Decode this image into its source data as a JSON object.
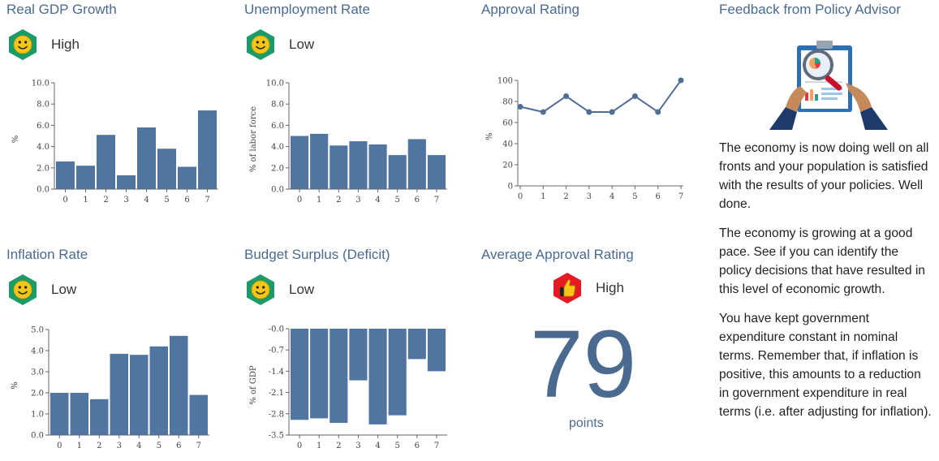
{
  "colors": {
    "bar": "#4f75a0",
    "line": "#4f6f94",
    "title": "#4a6a90",
    "hex_green": "#1a9b67",
    "hex_red": "#e31b23",
    "smiley": "#f5c518"
  },
  "panels": {
    "gdp": {
      "title": "Real GDP Growth",
      "status": "High",
      "icon": "smiley-icon"
    },
    "unemployment": {
      "title": "Unemployment Rate",
      "status": "Low",
      "icon": "smiley-icon"
    },
    "approval": {
      "title": "Approval Rating"
    },
    "inflation": {
      "title": "Inflation Rate",
      "status": "Low",
      "icon": "smiley-icon"
    },
    "budget": {
      "title": "Budget Surplus (Deficit)",
      "status": "Low",
      "icon": "smiley-icon"
    },
    "avg_approval": {
      "title": "Average Approval Rating",
      "status": "High",
      "icon": "thumbs-up-icon",
      "value": "79",
      "unit": "points"
    }
  },
  "advisor": {
    "title": "Feedback from Policy Advisor",
    "image_icon": "clipboard-magnifier-icon",
    "paragraphs": [
      "The economy is now doing well on all fronts and your population is satisfied with the results of your policies. Well done.",
      "The economy is growing at a good pace. See if you can identify the policy decisions that have resulted in this level of economic growth.",
      "You have kept government expenditure constant in nominal terms. Remember that, if inflation is positive, this amounts to a reduction in government expenditure in real terms (i.e. after adjusting for inflation)."
    ]
  },
  "chart_data": [
    {
      "id": "gdp",
      "type": "bar",
      "categories": [
        "0",
        "1",
        "2",
        "3",
        "4",
        "5",
        "6",
        "7"
      ],
      "values": [
        2.6,
        2.2,
        5.1,
        1.3,
        5.8,
        3.8,
        2.1,
        7.4
      ],
      "ylabel": "%",
      "ylim": [
        0,
        10
      ],
      "yticks": [
        "0.0",
        "2.0",
        "4.0",
        "6.0",
        "8.0",
        "10.0"
      ]
    },
    {
      "id": "unemployment",
      "type": "bar",
      "categories": [
        "0",
        "1",
        "2",
        "3",
        "4",
        "5",
        "6",
        "7"
      ],
      "values": [
        5.0,
        5.2,
        4.1,
        4.5,
        4.2,
        3.2,
        4.7,
        3.2
      ],
      "ylabel": "% of labor force",
      "ylim": [
        0,
        10
      ],
      "yticks": [
        "0.0",
        "2.0",
        "4.0",
        "6.0",
        "8.0",
        "10.0"
      ]
    },
    {
      "id": "approval",
      "type": "line",
      "categories": [
        "0",
        "1",
        "2",
        "3",
        "4",
        "5",
        "6",
        "7"
      ],
      "values": [
        75,
        70,
        85,
        70,
        70,
        85,
        70,
        100
      ],
      "ylabel": "%",
      "ylim": [
        0,
        100
      ],
      "yticks": [
        "0",
        "20",
        "40",
        "60",
        "80",
        "100"
      ]
    },
    {
      "id": "inflation",
      "type": "bar",
      "categories": [
        "0",
        "1",
        "2",
        "3",
        "4",
        "5",
        "6",
        "7"
      ],
      "values": [
        2.0,
        2.0,
        1.7,
        3.85,
        3.8,
        4.2,
        4.7,
        1.9
      ],
      "ylabel": "%",
      "ylim": [
        0,
        5
      ],
      "yticks": [
        "0.0",
        "1.0",
        "2.0",
        "3.0",
        "4.0",
        "5.0"
      ]
    },
    {
      "id": "budget",
      "type": "bar",
      "categories": [
        "0",
        "1",
        "2",
        "3",
        "4",
        "5",
        "6",
        "7"
      ],
      "values": [
        -3.0,
        -2.95,
        -3.1,
        -1.7,
        -3.15,
        -2.85,
        -1.0,
        -1.4
      ],
      "ylabel": "% of GDP",
      "ylim": [
        -3.5,
        0
      ],
      "yticks": [
        "-0.0",
        "-0.7",
        "-1.4",
        "-2.1",
        "-2.8",
        "-3.5"
      ]
    }
  ]
}
